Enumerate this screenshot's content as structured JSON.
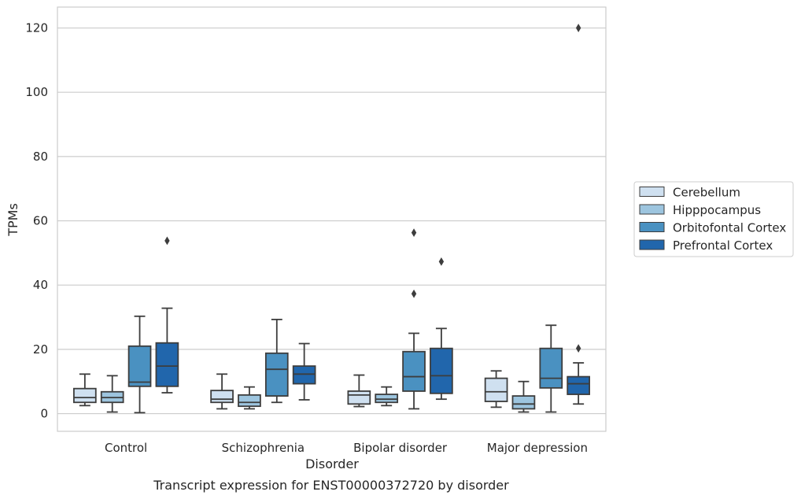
{
  "chart_data": {
    "type": "box",
    "title": "Transcript expression for ENST00000372720 by disorder",
    "xlabel": "Disorder",
    "ylabel": "TPMs",
    "ylim": [
      -5.5,
      126.5
    ],
    "yticks": [
      0,
      20,
      40,
      60,
      80,
      100,
      120
    ],
    "grid": "horizontal",
    "legend_placement": "right",
    "categories": [
      "Control",
      "Schizophrenia",
      "Bipolar disorder",
      "Major depression"
    ],
    "series": [
      {
        "name": "Cerebellum",
        "color": "#cfe0f0",
        "boxes": [
          {
            "whislo": 2.5,
            "q1": 3.5,
            "med": 5.0,
            "q3": 7.8,
            "whishi": 12.3,
            "fliers": []
          },
          {
            "whislo": 1.5,
            "q1": 3.5,
            "med": 4.5,
            "q3": 7.2,
            "whishi": 12.3,
            "fliers": []
          },
          {
            "whislo": 2.2,
            "q1": 3.0,
            "med": 5.8,
            "q3": 7.0,
            "whishi": 12.0,
            "fliers": []
          },
          {
            "whislo": 2.0,
            "q1": 3.8,
            "med": 6.8,
            "q3": 11.0,
            "whishi": 13.3,
            "fliers": []
          }
        ]
      },
      {
        "name": "Hipppocampus",
        "color": "#9dc5df",
        "boxes": [
          {
            "whislo": 0.5,
            "q1": 3.5,
            "med": 5.0,
            "q3": 6.8,
            "whishi": 11.8,
            "fliers": []
          },
          {
            "whislo": 1.5,
            "q1": 2.3,
            "med": 3.5,
            "q3": 5.8,
            "whishi": 8.3,
            "fliers": []
          },
          {
            "whislo": 2.5,
            "q1": 3.5,
            "med": 4.5,
            "q3": 6.0,
            "whishi": 8.3,
            "fliers": []
          },
          {
            "whislo": 0.5,
            "q1": 1.5,
            "med": 3.0,
            "q3": 5.5,
            "whishi": 10.0,
            "fliers": []
          }
        ]
      },
      {
        "name": "Orbitofontal Cortex",
        "color": "#4a91c1",
        "boxes": [
          {
            "whislo": 0.3,
            "q1": 8.5,
            "med": 9.8,
            "q3": 21.0,
            "whishi": 30.3,
            "fliers": []
          },
          {
            "whislo": 3.5,
            "q1": 5.5,
            "med": 13.8,
            "q3": 18.8,
            "whishi": 29.3,
            "fliers": []
          },
          {
            "whislo": 1.5,
            "q1": 7.0,
            "med": 11.5,
            "q3": 19.3,
            "whishi": 25.0,
            "fliers": [
              37.3,
              56.3
            ]
          },
          {
            "whislo": 0.5,
            "q1": 8.0,
            "med": 11.0,
            "q3": 20.3,
            "whishi": 27.5,
            "fliers": []
          }
        ]
      },
      {
        "name": "Prefrontal Cortex",
        "color": "#2166ac",
        "boxes": [
          {
            "whislo": 6.5,
            "q1": 8.5,
            "med": 14.8,
            "q3": 22.0,
            "whishi": 32.8,
            "fliers": [
              53.8
            ]
          },
          {
            "whislo": 4.3,
            "q1": 9.3,
            "med": 12.3,
            "q3": 14.8,
            "whishi": 21.8,
            "fliers": []
          },
          {
            "whislo": 4.5,
            "q1": 6.3,
            "med": 11.8,
            "q3": 20.3,
            "whishi": 26.5,
            "fliers": [
              47.3
            ]
          },
          {
            "whislo": 3.0,
            "q1": 6.0,
            "med": 9.3,
            "q3": 11.5,
            "whishi": 15.8,
            "fliers": [
              20.3,
              120.0
            ]
          }
        ]
      }
    ]
  }
}
